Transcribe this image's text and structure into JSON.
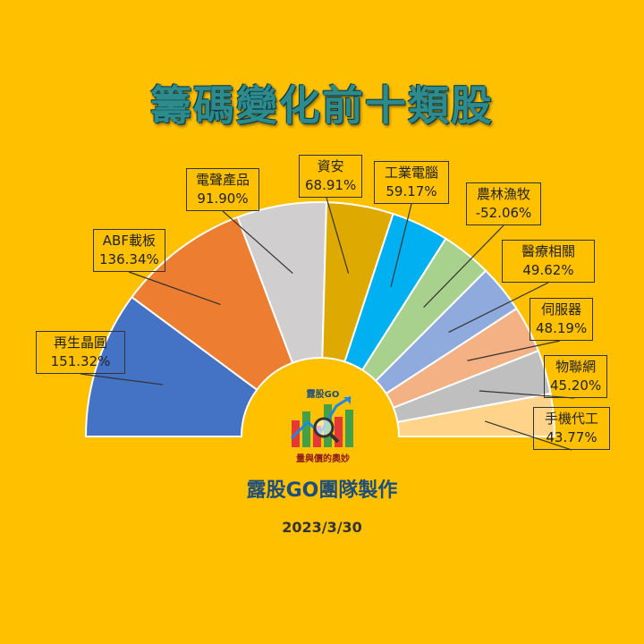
{
  "title": "籌碼變化前十類股",
  "team": "露股GO團隊製作",
  "date": "2023/3/30",
  "logo": {
    "top_text": "露股GO",
    "bottom_text": "量與價的奧妙"
  },
  "chart_data": {
    "type": "pie",
    "variant": "half-donut",
    "categories": [
      "再生晶圓",
      "ABF載板",
      "電聲產品",
      "資安",
      "工業電腦",
      "農林漁牧",
      "醫療相關",
      "伺服器",
      "物聯網",
      "手機代工"
    ],
    "values": [
      151.32,
      136.34,
      91.9,
      68.91,
      59.17,
      -52.06,
      49.62,
      48.19,
      45.2,
      43.77
    ],
    "value_labels": [
      "151.32%",
      "136.34%",
      "91.90%",
      "68.91%",
      "59.17%",
      "-52.06%",
      "49.62%",
      "48.19%",
      "45.20%",
      "43.77%"
    ],
    "colors": [
      "#4472C4",
      "#ED7D31",
      "#D0CECE",
      "#DEA900",
      "#00B0F0",
      "#A9D18E",
      "#8FAADC",
      "#F4B183",
      "#BFBFBF",
      "#FFD48A"
    ]
  }
}
